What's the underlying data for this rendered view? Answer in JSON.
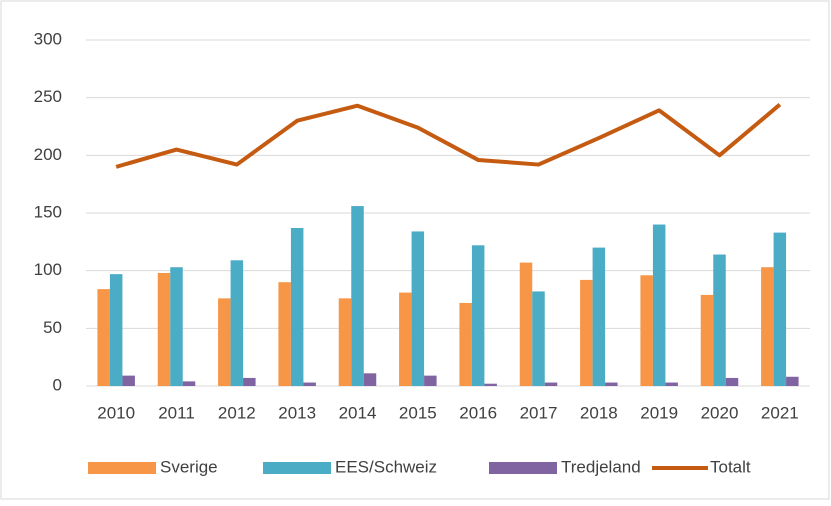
{
  "chart_data": {
    "type": "bar",
    "categories": [
      "2010",
      "2011",
      "2012",
      "2013",
      "2014",
      "2015",
      "2016",
      "2017",
      "2018",
      "2019",
      "2020",
      "2021"
    ],
    "series": [
      {
        "name": "Sverige",
        "color": "#f79646",
        "type": "bar",
        "values": [
          84,
          98,
          76,
          90,
          76,
          81,
          72,
          107,
          92,
          96,
          79,
          103
        ]
      },
      {
        "name": "EES/Schweiz",
        "color": "#4bacc6",
        "type": "bar",
        "values": [
          97,
          103,
          109,
          137,
          156,
          134,
          122,
          82,
          120,
          140,
          114,
          133
        ]
      },
      {
        "name": "Tredjeland",
        "color": "#8064a2",
        "type": "bar",
        "values": [
          9,
          4,
          7,
          3,
          11,
          9,
          2,
          3,
          3,
          3,
          7,
          8
        ]
      },
      {
        "name": "Totalt",
        "color": "#c55a11",
        "type": "line",
        "values": [
          190,
          205,
          192,
          230,
          243,
          224,
          196,
          192,
          215,
          239,
          200,
          244
        ]
      }
    ],
    "ylim": [
      0,
      300
    ],
    "yticks": [
      0,
      50,
      100,
      150,
      200,
      250,
      300
    ],
    "grid": true,
    "legend": "bottom"
  }
}
